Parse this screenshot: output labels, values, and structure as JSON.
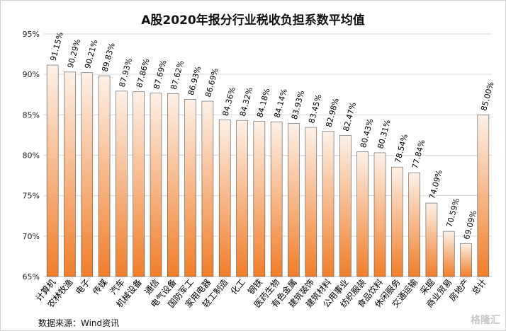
{
  "chart_data": {
    "type": "bar",
    "title": "A股2020年报分行业税收负担系数平均值",
    "categories": [
      "计算机",
      "农林牧渔",
      "电子",
      "传媒",
      "汽车",
      "机械设备",
      "通信",
      "电气设备",
      "国防军工",
      "家用电器",
      "轻工制造",
      "化工",
      "钢铁",
      "医药生物",
      "有色金属",
      "建筑装饰",
      "建筑材料",
      "公用事业",
      "纺织服装",
      "食品饮料",
      "休闲服务",
      "交通运输",
      "采掘",
      "商业贸易",
      "房地产",
      "总计"
    ],
    "values": [
      91.15,
      90.29,
      90.21,
      89.83,
      87.93,
      87.86,
      87.69,
      87.62,
      86.93,
      86.69,
      84.36,
      84.32,
      84.18,
      84.14,
      83.93,
      83.45,
      82.98,
      82.47,
      80.43,
      80.31,
      78.54,
      77.84,
      74.09,
      70.59,
      69.09,
      85.0
    ],
    "value_labels": [
      "91.15%",
      "90.29%",
      "90.21%",
      "89.83%",
      "87.93%",
      "87.86%",
      "87.69%",
      "87.62%",
      "86.93%",
      "86.69%",
      "84.36%",
      "84.32%",
      "84.18%",
      "84.14%",
      "83.93%",
      "83.45%",
      "82.98%",
      "82.47%",
      "80.43%",
      "80.31%",
      "78.54%",
      "77.84%",
      "74.09%",
      "70.59%",
      "69.09%",
      "85.00%"
    ],
    "ylim": [
      65,
      95
    ],
    "yticks": [
      65,
      70,
      75,
      80,
      85,
      90,
      95
    ],
    "ytick_labels": [
      "65%",
      "70%",
      "75%",
      "80%",
      "85%",
      "90%",
      "95%"
    ],
    "grid": true,
    "bar_color_top": "#fdf1e8",
    "bar_color_bottom": "#f07e2a",
    "bar_border": "#555555",
    "grid_color": "#d9d9d9"
  },
  "source": "数据来源：Wind资讯",
  "watermark": "格隆汇"
}
